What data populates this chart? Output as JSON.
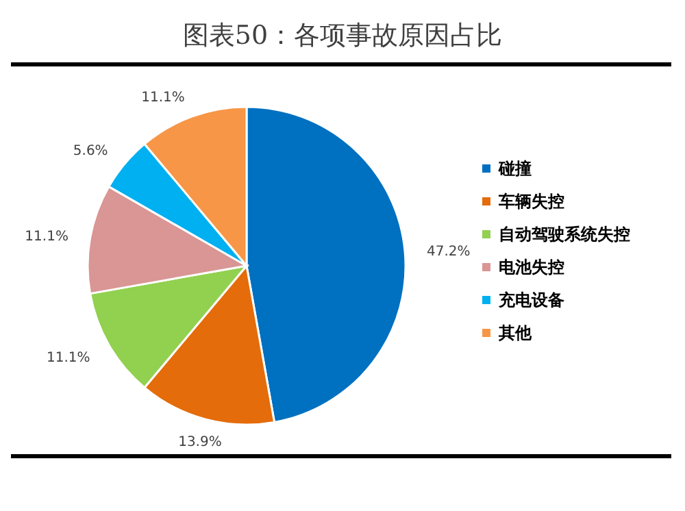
{
  "chart_data": {
    "type": "pie",
    "title": "图表50：各项事故原因占比",
    "categories": [
      "碰撞",
      "车辆失控",
      "自动驾驶系统失控",
      "电池失控",
      "充电设备",
      "其他"
    ],
    "values": [
      47.2,
      13.9,
      11.1,
      11.1,
      5.6,
      11.1
    ],
    "colors": [
      "#0070c0",
      "#e46c0a",
      "#92d050",
      "#d99694",
      "#00b0f0",
      "#f79646"
    ],
    "value_labels": [
      "47.2%",
      "13.9%",
      "11.1%",
      "11.1%",
      "5.6%",
      "11.1%"
    ],
    "legend": "right"
  }
}
